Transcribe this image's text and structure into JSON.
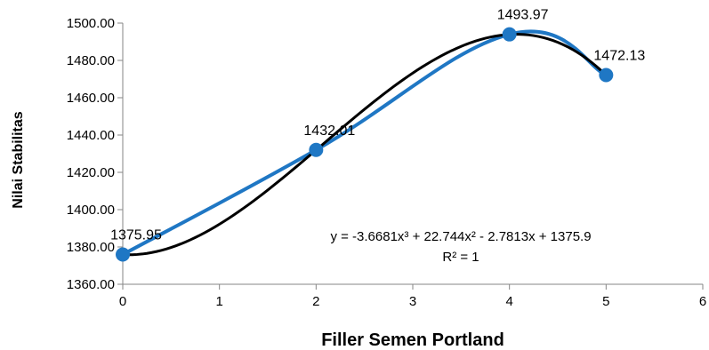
{
  "chart_data": {
    "type": "scatter",
    "xlabel": "Filler Semen Portland",
    "ylabel": "Nilai Stabilitas",
    "xlim": [
      0,
      6
    ],
    "ylim": [
      1360,
      1500
    ],
    "x_ticks": [
      "0",
      "1",
      "2",
      "3",
      "4",
      "5",
      "6"
    ],
    "y_ticks": [
      "1360.00",
      "1380.00",
      "1400.00",
      "1420.00",
      "1440.00",
      "1460.00",
      "1480.00",
      "1500.00"
    ],
    "grid": false,
    "series": [
      {
        "x": [
          0,
          2,
          4,
          5
        ],
        "y": [
          1375.95,
          1432.01,
          1493.97,
          1472.13
        ],
        "labels": [
          "1375.95",
          "1432.01",
          "1493.97",
          "1472.13"
        ],
        "color": "#1f77c4",
        "line": "smooth",
        "marker": "circle"
      }
    ],
    "trendline": {
      "type": "polynomial",
      "order": 3,
      "coefficients": [
        -3.6681,
        22.744,
        -2.7813,
        1375.9
      ],
      "color": "#000000",
      "equation_label": "y = -3.6681x³ + 22.744x² - 2.7813x + 1375.9",
      "r2_label": "R² = 1"
    }
  }
}
